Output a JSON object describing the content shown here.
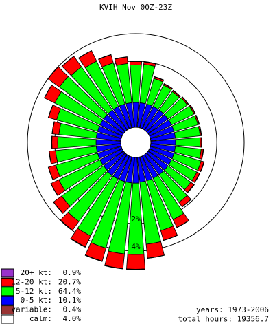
{
  "chart_data": {
    "type": "windrose",
    "title": "KVIH Nov 00Z-23Z",
    "radial_scale": "sqrt",
    "rticks": [
      {
        "value": 2,
        "label": "2%"
      },
      {
        "value": 4,
        "label": "4%"
      }
    ],
    "x": [
      10,
      20,
      30,
      40,
      50,
      60,
      70,
      80,
      90,
      100,
      110,
      120,
      130,
      140,
      150,
      160,
      170,
      180,
      190,
      200,
      210,
      220,
      230,
      240,
      250,
      260,
      270,
      280,
      290,
      300,
      310,
      320,
      330,
      340,
      350,
      360
    ],
    "series": [
      {
        "name": "20+ kt:",
        "color": "#9933cc",
        "total": 0.9,
        "total_label": "0.9%",
        "values": [
          0.02,
          0.02,
          0.02,
          0.02,
          0.02,
          0.02,
          0.02,
          0.02,
          0.02,
          0.02,
          0.02,
          0.02,
          0.02,
          0.02,
          0.02,
          0.02,
          0.02,
          0.05,
          0.05,
          0.05,
          0.05,
          0.03,
          0.02,
          0.02,
          0.02,
          0.02,
          0.02,
          0.02,
          0.02,
          0.02,
          0.02,
          0.02,
          0.02,
          0.02,
          0.02,
          0.02
        ]
      },
      {
        "name": "12-20 kt:",
        "color": "#ff0000",
        "total": 20.7,
        "total_label": "20.7%",
        "values": [
          0.15,
          0.08,
          0.05,
          0.05,
          0.05,
          0.05,
          0.05,
          0.05,
          0.06,
          0.1,
          0.15,
          0.15,
          0.2,
          0.3,
          0.6,
          0.75,
          1.2,
          1.4,
          1.4,
          1.25,
          1.05,
          0.87,
          0.75,
          0.6,
          0.5,
          0.4,
          0.35,
          0.4,
          0.55,
          0.85,
          1.1,
          1.0,
          0.85,
          0.55,
          0.4,
          0.2
        ]
      },
      {
        "name": "5-12 kt:",
        "color": "#00ff00",
        "total": 64.4,
        "total_label": "64.4%",
        "values": [
          1.55,
          0.92,
          0.8,
          0.75,
          0.8,
          0.85,
          0.85,
          0.85,
          0.84,
          0.9,
          1.0,
          1.0,
          1.0,
          1.3,
          2.0,
          2.4,
          3.2,
          4.0,
          4.0,
          3.8,
          3.3,
          2.8,
          2.4,
          2.0,
          1.85,
          1.7,
          1.55,
          1.5,
          1.8,
          2.3,
          2.6,
          2.5,
          2.3,
          1.8,
          1.6,
          1.5
        ]
      },
      {
        "name": "0-5 kt:",
        "color": "#0000ff",
        "total": 10.1,
        "total_label": "10.1%",
        "values": [
          0.28,
          0.28,
          0.28,
          0.28,
          0.28,
          0.28,
          0.28,
          0.28,
          0.28,
          0.28,
          0.28,
          0.28,
          0.28,
          0.28,
          0.28,
          0.28,
          0.28,
          0.3,
          0.3,
          0.3,
          0.3,
          0.3,
          0.28,
          0.28,
          0.28,
          0.28,
          0.28,
          0.28,
          0.28,
          0.28,
          0.28,
          0.28,
          0.28,
          0.28,
          0.28,
          0.28
        ]
      }
    ],
    "variable": {
      "name": "variable:",
      "color": "#993333",
      "value": 0.4,
      "value_label": "0.4%"
    },
    "calm": {
      "name": "calm:",
      "color": "#ffffff",
      "value": 4.0,
      "value_label": "4.0%"
    },
    "footer": [
      "years: 1973-2006",
      "total hours: 19356.7"
    ]
  }
}
